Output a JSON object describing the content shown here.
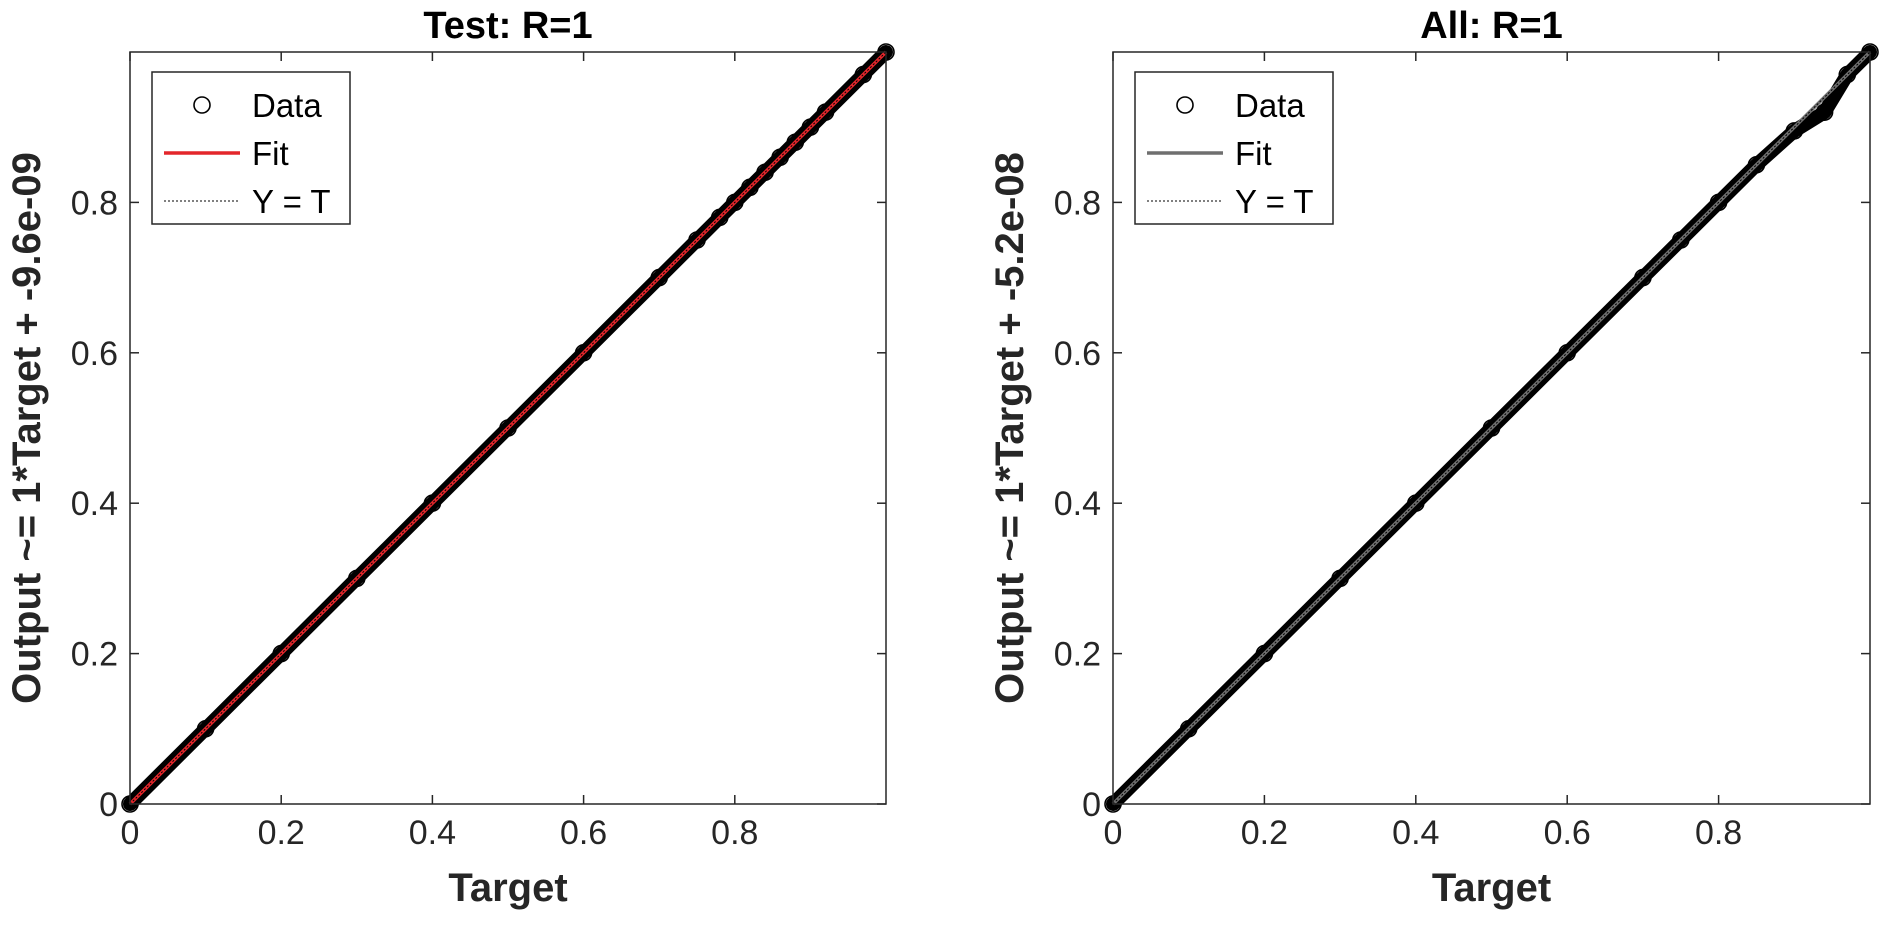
{
  "chart_data": [
    {
      "type": "scatter",
      "title": "Test: R=1",
      "xlabel": "Target",
      "ylabel": "Output ~= 1*Target + -9.6e-09",
      "xlim": [
        0,
        1
      ],
      "ylim": [
        0,
        1
      ],
      "x_ticks": [
        "0",
        "0.2",
        "0.4",
        "0.6",
        "0.8"
      ],
      "y_ticks": [
        "0",
        "0.2",
        "0.4",
        "0.6",
        "0.8"
      ],
      "grid": false,
      "legend_position": "top-left",
      "series": [
        {
          "name": "Data",
          "kind": "markers",
          "marker": "circle",
          "color": "#000000",
          "x": [
            0,
            0.1,
            0.2,
            0.3,
            0.4,
            0.5,
            0.6,
            0.7,
            0.75,
            0.78,
            0.8,
            0.82,
            0.84,
            0.86,
            0.88,
            0.9,
            0.92,
            0.97,
            1.0
          ],
          "y": [
            0,
            0.1,
            0.2,
            0.3,
            0.4,
            0.5,
            0.6,
            0.7,
            0.75,
            0.78,
            0.8,
            0.82,
            0.84,
            0.86,
            0.88,
            0.9,
            0.92,
            0.97,
            1.0
          ]
        },
        {
          "name": "Fit",
          "kind": "line",
          "color": "#e3262b",
          "x": [
            0,
            1
          ],
          "y": [
            0,
            1
          ]
        },
        {
          "name": "Y = T",
          "kind": "dotted",
          "color": "#000000",
          "x": [
            0,
            1
          ],
          "y": [
            0,
            1
          ]
        }
      ]
    },
    {
      "type": "scatter",
      "title": "All: R=1",
      "xlabel": "Target",
      "ylabel": "Output ~= 1*Target + -5.2e-08",
      "xlim": [
        0,
        1
      ],
      "ylim": [
        0,
        1
      ],
      "x_ticks": [
        "0",
        "0.2",
        "0.4",
        "0.6",
        "0.8"
      ],
      "y_ticks": [
        "0",
        "0.2",
        "0.4",
        "0.6",
        "0.8"
      ],
      "grid": false,
      "legend_position": "top-left",
      "series": [
        {
          "name": "Data",
          "kind": "markers",
          "marker": "circle",
          "color": "#000000",
          "x": [
            0,
            0.1,
            0.2,
            0.3,
            0.4,
            0.5,
            0.6,
            0.7,
            0.75,
            0.8,
            0.85,
            0.9,
            0.94,
            0.97,
            1.0
          ],
          "y": [
            0,
            0.1,
            0.2,
            0.3,
            0.4,
            0.5,
            0.6,
            0.7,
            0.75,
            0.8,
            0.85,
            0.895,
            0.92,
            0.97,
            1.0
          ]
        },
        {
          "name": "Fit",
          "kind": "line",
          "color": "#6f6f6f",
          "x": [
            0,
            1
          ],
          "y": [
            0,
            1
          ]
        },
        {
          "name": "Y = T",
          "kind": "dotted",
          "color": "#000000",
          "x": [
            0,
            1
          ],
          "y": [
            0,
            1
          ]
        }
      ]
    }
  ]
}
